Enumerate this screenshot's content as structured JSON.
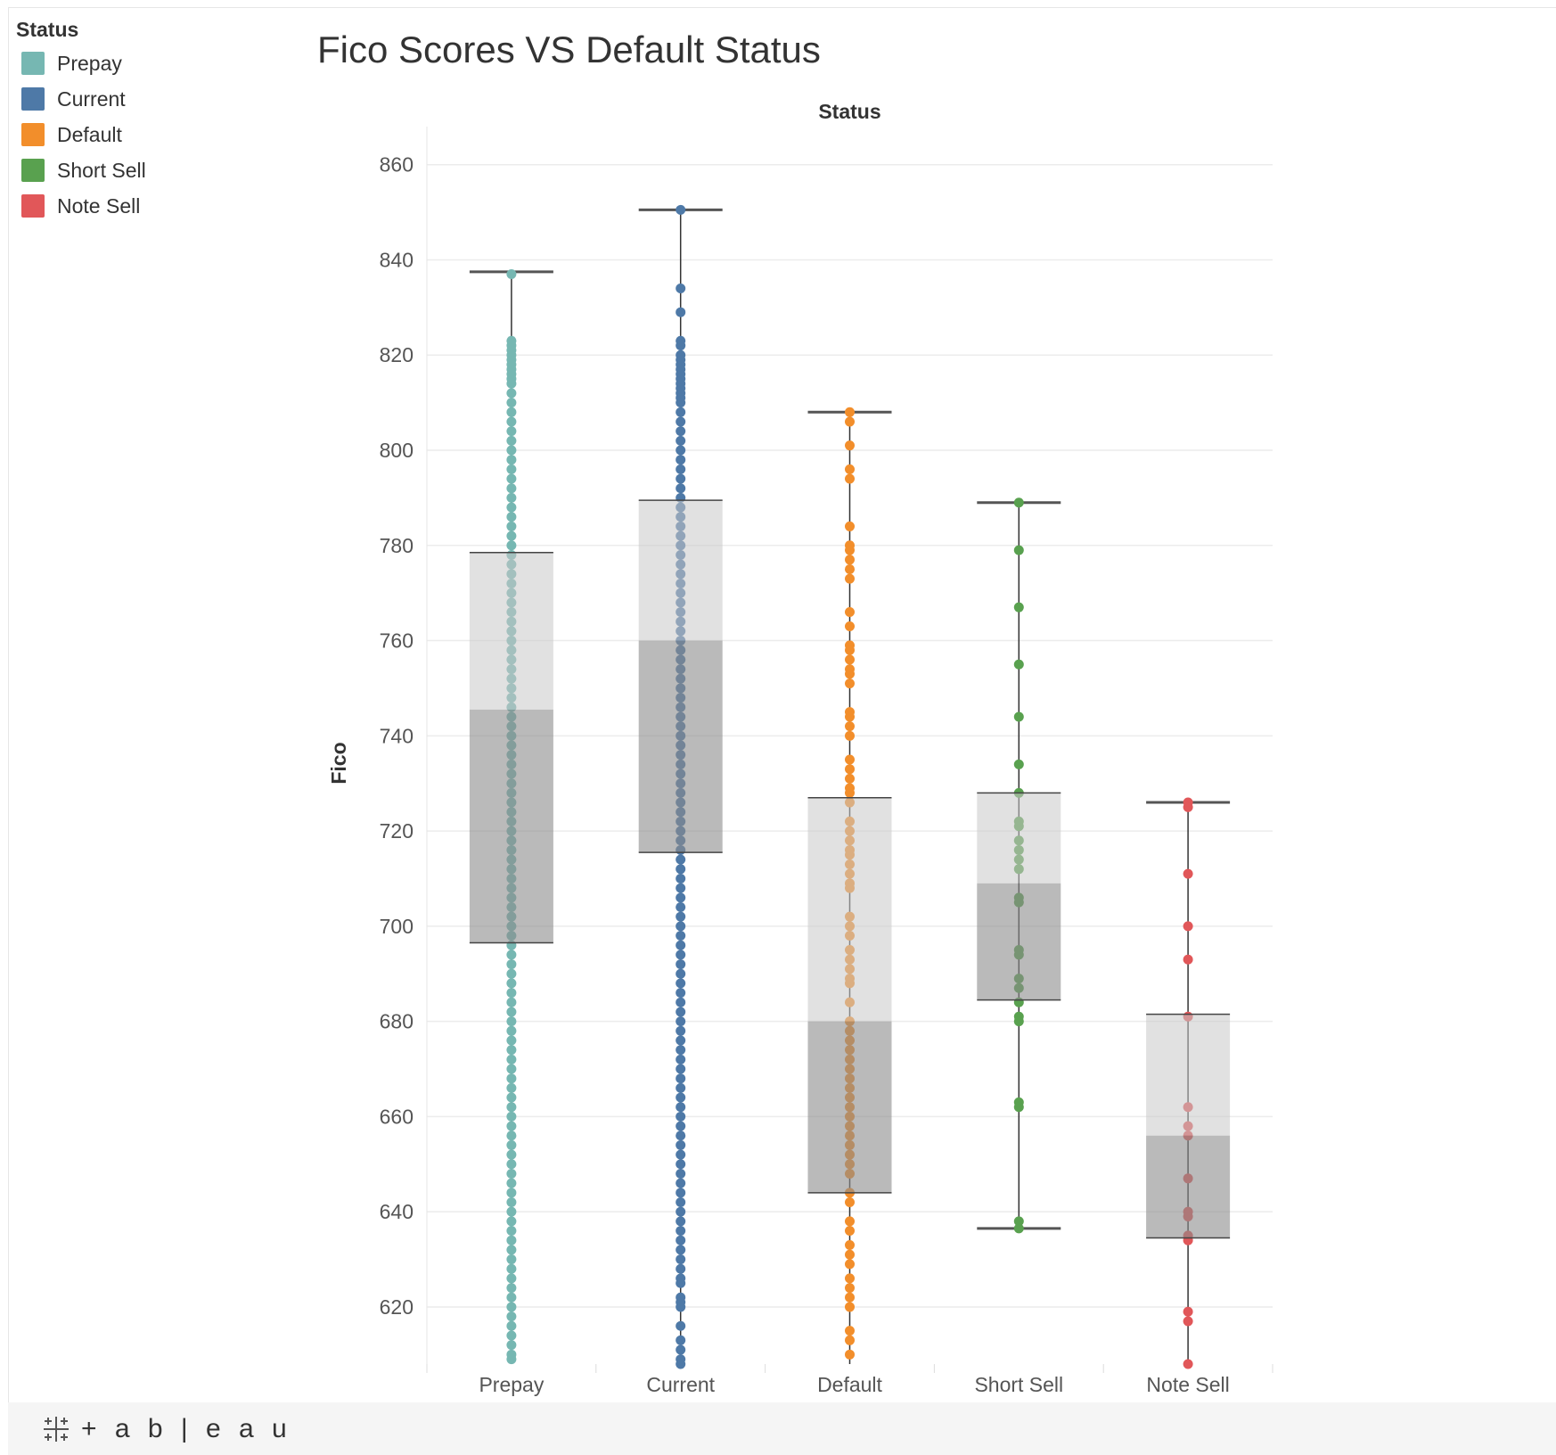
{
  "title": "Fico Scores VS Default Status",
  "legend": {
    "title": "Status",
    "items": [
      {
        "label": "Prepay",
        "color": "#76b7b2"
      },
      {
        "label": "Current",
        "color": "#4e79a7"
      },
      {
        "label": "Default",
        "color": "#f28e2b"
      },
      {
        "label": "Short Sell",
        "color": "#59a14f"
      },
      {
        "label": "Note Sell",
        "color": "#e15759"
      }
    ]
  },
  "branding": {
    "logo_text": "+ a b | e a u"
  },
  "chart_data": {
    "type": "box",
    "title": "Fico Scores VS Default Status",
    "column_header": "Status",
    "xlabel": "",
    "ylabel": "Fico",
    "ylim": [
      608,
      868
    ],
    "yticks": [
      620,
      640,
      660,
      680,
      700,
      720,
      740,
      760,
      780,
      800,
      820,
      840,
      860
    ],
    "grid": true,
    "categories": [
      "Prepay",
      "Current",
      "Default",
      "Short Sell",
      "Note Sell"
    ],
    "boxes": [
      {
        "name": "Prepay",
        "color": "#76b7b2",
        "whisker_low": 608,
        "q1": 696.5,
        "median": 745.5,
        "q3": 778.5,
        "whisker_high": 837.5,
        "points": [
          837,
          823,
          822,
          821,
          820,
          819,
          818,
          817,
          816,
          815,
          814,
          812,
          810,
          808,
          806,
          804,
          802,
          800,
          798,
          796,
          794,
          792,
          790,
          788,
          786,
          784,
          782,
          780,
          778,
          776,
          774,
          772,
          770,
          768,
          766,
          764,
          762,
          760,
          758,
          756,
          754,
          752,
          750,
          748,
          746,
          744,
          742,
          740,
          738,
          736,
          734,
          732,
          730,
          728,
          726,
          724,
          722,
          720,
          718,
          716,
          714,
          712,
          710,
          708,
          706,
          704,
          702,
          700,
          698,
          696,
          694,
          692,
          690,
          688,
          686,
          684,
          682,
          680,
          678,
          676,
          674,
          672,
          670,
          668,
          666,
          664,
          662,
          660,
          658,
          656,
          654,
          652,
          650,
          648,
          646,
          644,
          642,
          640,
          638,
          636,
          634,
          632,
          630,
          628,
          626,
          624,
          622,
          620,
          618,
          616,
          614,
          612,
          610,
          609
        ]
      },
      {
        "name": "Current",
        "color": "#4e79a7",
        "whisker_low": 608,
        "q1": 715.5,
        "median": 760,
        "q3": 789.5,
        "whisker_high": 850.5,
        "points": [
          850.5,
          834,
          829,
          823,
          822,
          820,
          819,
          818,
          817,
          816,
          815,
          814,
          813,
          812,
          811,
          810,
          808,
          806,
          804,
          802,
          800,
          798,
          796,
          794,
          792,
          790,
          788,
          786,
          784,
          782,
          780,
          778,
          776,
          774,
          772,
          770,
          768,
          766,
          764,
          762,
          760,
          758,
          756,
          754,
          752,
          750,
          748,
          746,
          744,
          742,
          740,
          738,
          736,
          734,
          732,
          730,
          728,
          726,
          724,
          722,
          720,
          718,
          716,
          714,
          712,
          710,
          708,
          706,
          704,
          702,
          700,
          698,
          696,
          694,
          692,
          690,
          688,
          686,
          684,
          682,
          680,
          678,
          676,
          674,
          672,
          670,
          668,
          666,
          664,
          662,
          660,
          658,
          656,
          654,
          652,
          650,
          648,
          646,
          644,
          642,
          640,
          638,
          636,
          634,
          632,
          630,
          628,
          626,
          625,
          622,
          621,
          620,
          616,
          613,
          611,
          609,
          608
        ]
      },
      {
        "name": "Default",
        "color": "#f28e2b",
        "whisker_low": 608,
        "q1": 644,
        "median": 680,
        "q3": 727,
        "whisker_high": 808,
        "points": [
          808,
          806,
          801,
          796,
          794,
          784,
          780,
          779,
          777,
          775,
          773,
          766,
          763,
          759,
          758,
          756,
          754,
          753,
          751,
          745,
          744,
          742,
          740,
          735,
          733,
          731,
          729,
          728,
          726,
          722,
          720,
          718,
          716,
          715,
          713,
          711,
          709,
          708,
          702,
          700,
          698,
          695,
          693,
          691,
          689,
          688,
          684,
          680,
          678,
          676,
          674,
          672,
          670,
          668,
          666,
          664,
          662,
          660,
          658,
          656,
          654,
          652,
          650,
          648,
          644,
          642,
          638,
          636,
          633,
          631,
          629,
          626,
          624,
          622,
          620,
          615,
          613,
          610
        ]
      },
      {
        "name": "Short Sell",
        "color": "#59a14f",
        "whisker_low": 636.5,
        "q1": 684.5,
        "median": 709,
        "q3": 728,
        "whisker_high": 789,
        "points": [
          789,
          779,
          767,
          755,
          744,
          734,
          728,
          722,
          721,
          718,
          716,
          714,
          712,
          706,
          705,
          695,
          694,
          689,
          687,
          684,
          681,
          680,
          663,
          662,
          638,
          636.5
        ]
      },
      {
        "name": "Note Sell",
        "color": "#e15759",
        "whisker_low": 608,
        "q1": 634.5,
        "median": 656,
        "q3": 681.5,
        "whisker_high": 726,
        "points": [
          726,
          725,
          711,
          700,
          693,
          681,
          662,
          658,
          656,
          647,
          640,
          639,
          635,
          634,
          619,
          617,
          608
        ]
      }
    ]
  }
}
